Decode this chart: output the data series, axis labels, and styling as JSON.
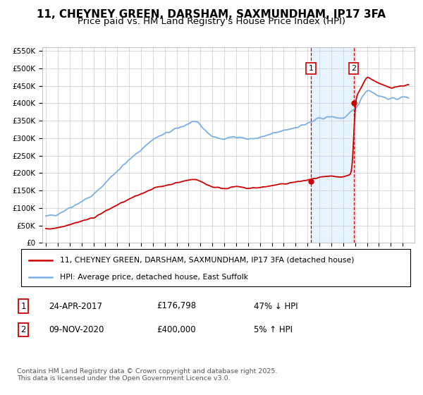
{
  "title": "11, CHEYNEY GREEN, DARSHAM, SAXMUNDHAM, IP17 3FA",
  "subtitle": "Price paid vs. HM Land Registry's House Price Index (HPI)",
  "legend_label_red": "11, CHEYNEY GREEN, DARSHAM, SAXMUNDHAM, IP17 3FA (detached house)",
  "legend_label_blue": "HPI: Average price, detached house, East Suffolk",
  "annotation1_label": "1",
  "annotation1_date": "24-APR-2017",
  "annotation1_price": "£176,798",
  "annotation1_hpi": "47% ↓ HPI",
  "annotation2_label": "2",
  "annotation2_date": "09-NOV-2020",
  "annotation2_price": "£400,000",
  "annotation2_hpi": "5% ↑ HPI",
  "footer": "Contains HM Land Registry data © Crown copyright and database right 2025.\nThis data is licensed under the Open Government Licence v3.0.",
  "red_color": "#cc0000",
  "blue_color": "#7aafe6",
  "shading_color": "#ddeeff",
  "ylim_min": 0,
  "ylim_max": 560000,
  "background_color": "#ffffff",
  "grid_color": "#cccccc",
  "title_fontsize": 11,
  "subtitle_fontsize": 9.5
}
